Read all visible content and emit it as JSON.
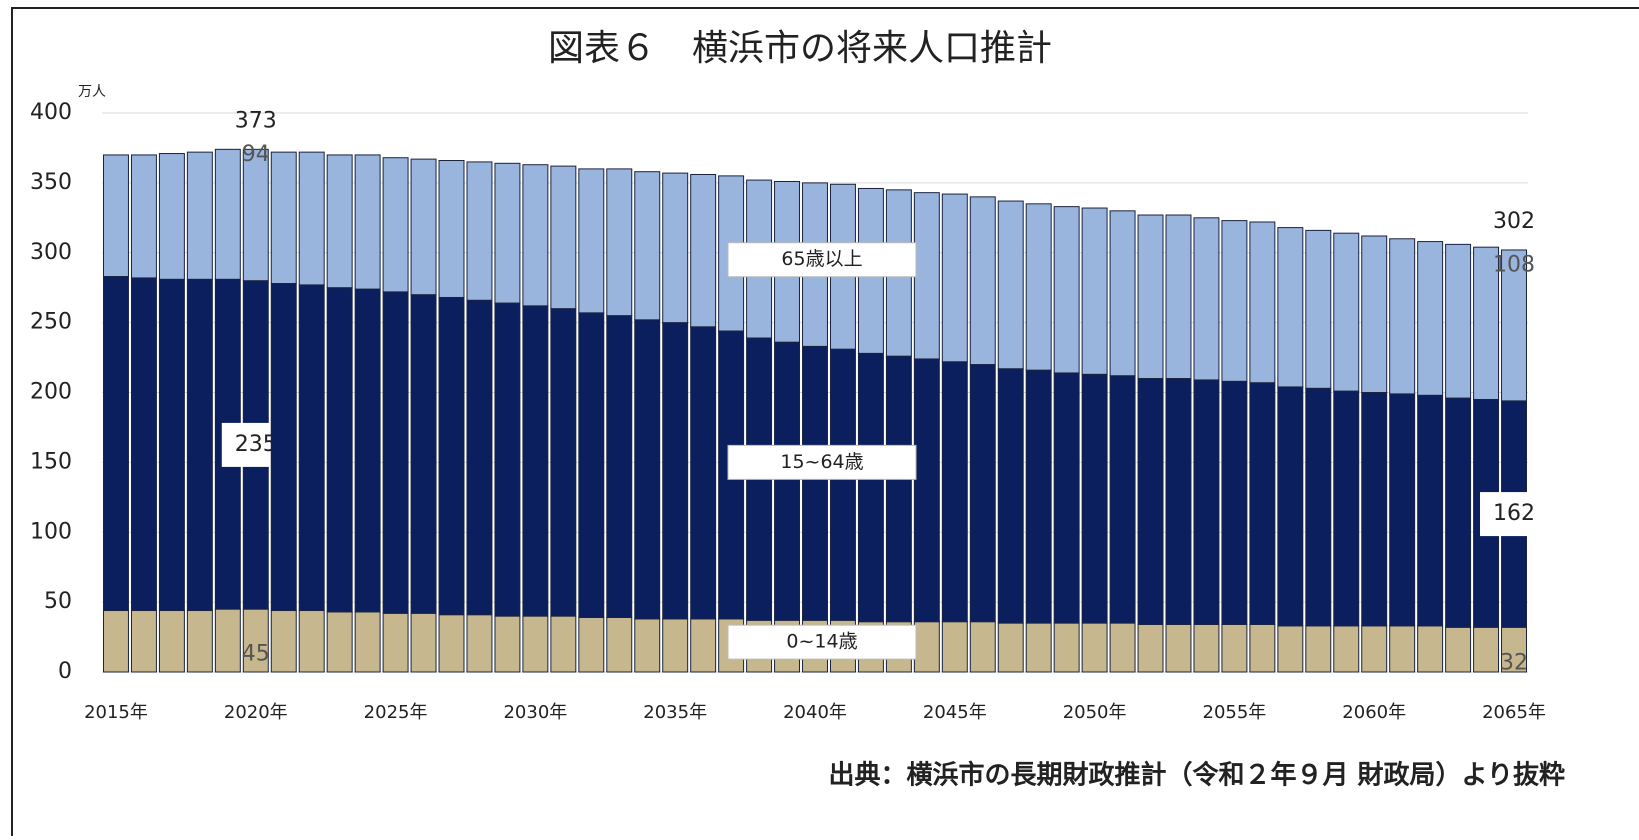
{
  "chart_data": {
    "type": "stacked_bar",
    "title": "図表６　横浜市の将来人口推計",
    "y_unit": "万人",
    "source": "出典：横浜市の長期財政推計（令和２年９月 財政局）より抜粋",
    "categories": [
      "2015年",
      null,
      null,
      null,
      null,
      "2020年",
      null,
      null,
      null,
      null,
      "2025年",
      null,
      null,
      null,
      null,
      "2030年",
      null,
      null,
      null,
      null,
      "2035年",
      null,
      null,
      null,
      null,
      "2040年",
      null,
      null,
      null,
      null,
      "2045年",
      null,
      null,
      null,
      null,
      "2050年",
      null,
      null,
      null,
      null,
      "2055年",
      null,
      null,
      null,
      null,
      "2060年",
      null,
      null,
      null,
      null,
      "2065年"
    ],
    "series": [
      {
        "name": "0~14歳",
        "color": "#c6b78e",
        "values": [
          44,
          44,
          44,
          44,
          45,
          45,
          44,
          44,
          43,
          43,
          42,
          42,
          41,
          41,
          40,
          40,
          40,
          39,
          39,
          38,
          38,
          38,
          38,
          37,
          37,
          37,
          37,
          36,
          36,
          36,
          36,
          36,
          35,
          35,
          35,
          35,
          35,
          34,
          34,
          34,
          34,
          34,
          33,
          33,
          33,
          33,
          33,
          33,
          32,
          32,
          32
        ],
        "value_labels": [
          null,
          null,
          null,
          null,
          null,
          "45",
          null,
          null,
          null,
          null,
          null,
          null,
          null,
          null,
          null,
          null,
          null,
          null,
          null,
          null,
          null,
          null,
          null,
          null,
          null,
          null,
          null,
          null,
          null,
          null,
          null,
          null,
          null,
          null,
          null,
          null,
          null,
          null,
          null,
          null,
          null,
          null,
          null,
          null,
          null,
          null,
          null,
          null,
          null,
          null,
          "32"
        ]
      },
      {
        "name": "15~64歳",
        "color": "#0b1f5e",
        "values": [
          239,
          238,
          237,
          237,
          236,
          235,
          234,
          233,
          232,
          231,
          230,
          228,
          227,
          225,
          224,
          222,
          220,
          218,
          216,
          214,
          212,
          209,
          206,
          202,
          199,
          196,
          194,
          192,
          190,
          188,
          186,
          184,
          182,
          181,
          179,
          178,
          177,
          176,
          176,
          175,
          174,
          173,
          171,
          170,
          168,
          167,
          166,
          165,
          164,
          163,
          162
        ],
        "value_labels": [
          null,
          null,
          null,
          null,
          null,
          "235",
          null,
          null,
          null,
          null,
          null,
          null,
          null,
          null,
          null,
          null,
          null,
          null,
          null,
          null,
          null,
          null,
          null,
          null,
          null,
          null,
          null,
          null,
          null,
          null,
          null,
          null,
          null,
          null,
          null,
          null,
          null,
          null,
          null,
          null,
          null,
          null,
          null,
          null,
          null,
          null,
          null,
          null,
          null,
          null,
          "162"
        ]
      },
      {
        "name": "65歳以上",
        "color": "#99b4dd",
        "values": [
          87,
          88,
          90,
          91,
          93,
          94,
          94,
          95,
          95,
          96,
          96,
          97,
          98,
          99,
          100,
          101,
          102,
          103,
          105,
          106,
          107,
          109,
          111,
          113,
          115,
          117,
          118,
          118,
          119,
          119,
          120,
          120,
          120,
          119,
          119,
          119,
          118,
          117,
          117,
          116,
          115,
          115,
          114,
          113,
          113,
          112,
          111,
          110,
          110,
          109,
          108
        ],
        "value_labels": [
          null,
          null,
          null,
          null,
          null,
          "94",
          null,
          null,
          null,
          null,
          null,
          null,
          null,
          null,
          null,
          null,
          null,
          null,
          null,
          null,
          null,
          null,
          null,
          null,
          null,
          null,
          null,
          null,
          null,
          null,
          null,
          null,
          null,
          null,
          null,
          null,
          null,
          null,
          null,
          null,
          null,
          null,
          null,
          null,
          null,
          null,
          null,
          null,
          null,
          null,
          "108"
        ]
      }
    ],
    "annotations": [
      {
        "text": "373",
        "category": "2020年"
      },
      {
        "text": "302",
        "category": "2065年"
      }
    ],
    "ylim": [
      0,
      400
    ],
    "yticks": [
      0,
      50,
      100,
      150,
      200,
      250,
      300,
      350,
      400
    ],
    "grid": true
  }
}
